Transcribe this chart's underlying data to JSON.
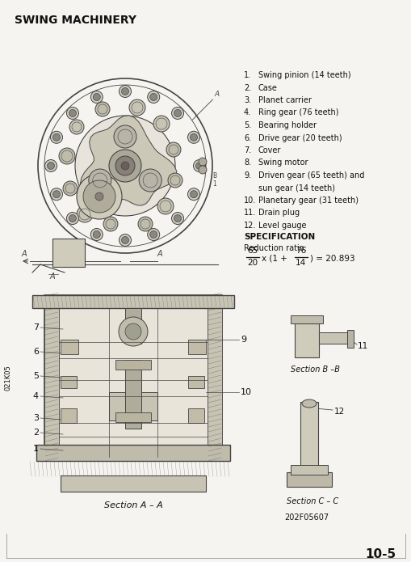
{
  "title": "SWING MACHINERY",
  "bg_color": "#f5f4f0",
  "text_color": "#111111",
  "draw_color": "#444444",
  "parts_list": [
    [
      "1.",
      "Swing pinion (14 teeth)"
    ],
    [
      "2.",
      "Case"
    ],
    [
      "3.",
      "Planet carrier"
    ],
    [
      "4.",
      "Ring gear (76 teeth)"
    ],
    [
      "5.",
      "Bearing holder"
    ],
    [
      "6.",
      "Drive gear (20 teeth)"
    ],
    [
      "7.",
      "Cover"
    ],
    [
      "8.",
      "Swing motor"
    ],
    [
      "9.",
      "Driven gear (65 teeth) and"
    ],
    [
      "",
      "sun gear (14 teeth)"
    ],
    [
      "10.",
      "Planetary gear (31 teeth)"
    ],
    [
      "11.",
      "Drain plug"
    ],
    [
      "12.",
      "Level gauge"
    ]
  ],
  "spec_title": "SPECIFICATION",
  "spec_subtitle": "Reduction ratio:",
  "page_number": "10-5",
  "figure_code": "202F05607",
  "side_code": "021K05",
  "section_a_label": "Section A – A",
  "section_b_label": "Section B –B",
  "section_c_label": "Section C – C"
}
